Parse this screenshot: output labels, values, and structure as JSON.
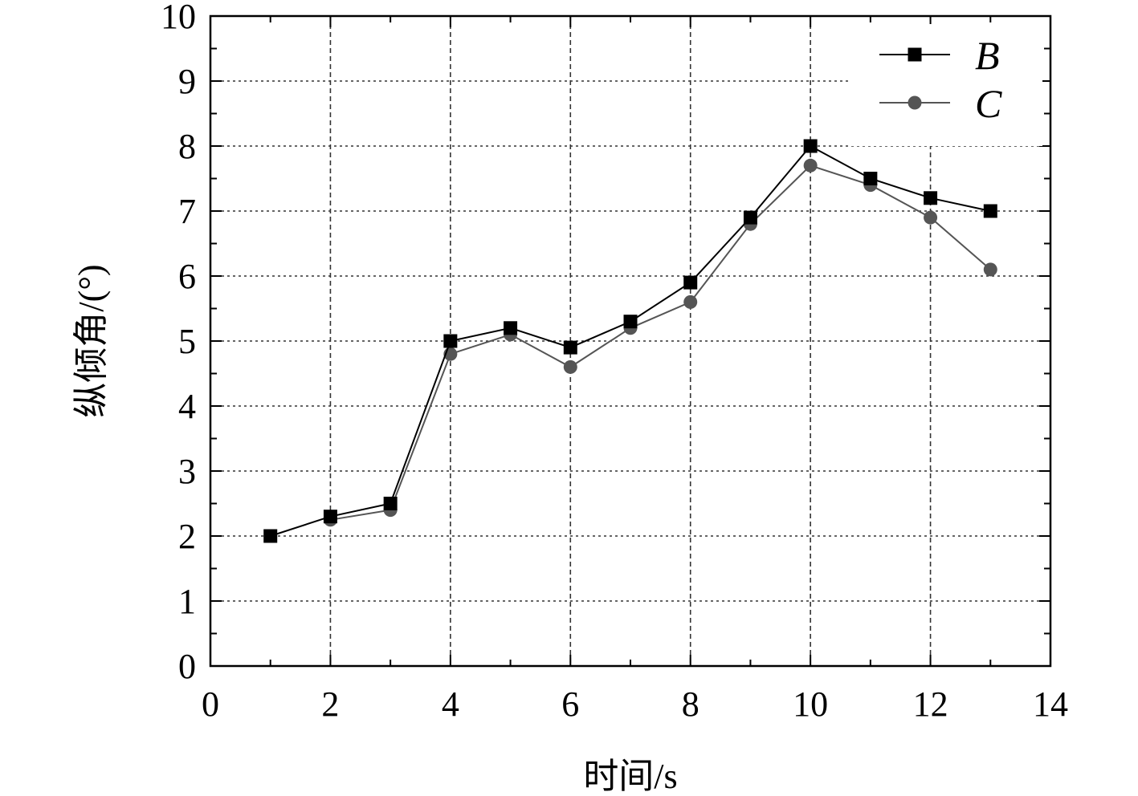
{
  "chart_data": {
    "type": "line",
    "title": "",
    "xlabel": "时间/s",
    "ylabel": "纵倾角/(°)",
    "xlim": [
      0,
      14
    ],
    "ylim": [
      0,
      10
    ],
    "xticks": [
      "0",
      "2",
      "4",
      "6",
      "8",
      "10",
      "12",
      "14"
    ],
    "yticks": [
      "0",
      "1",
      "2",
      "3",
      "4",
      "5",
      "6",
      "7",
      "8",
      "9",
      "10"
    ],
    "grid": true,
    "legend_position": "top-right",
    "series": [
      {
        "name": "B",
        "marker": "square",
        "color": "#000000",
        "x": [
          1,
          2,
          3,
          4,
          5,
          6,
          7,
          8,
          9,
          10,
          11,
          12,
          13
        ],
        "y": [
          2.0,
          2.3,
          2.5,
          5.0,
          5.2,
          4.9,
          5.3,
          5.9,
          6.9,
          8.0,
          7.5,
          7.2,
          7.0
        ]
      },
      {
        "name": "C",
        "marker": "circle",
        "color": "#555555",
        "x": [
          2,
          3,
          4,
          5,
          6,
          7,
          8,
          9,
          10,
          11,
          12,
          13
        ],
        "y": [
          2.25,
          2.4,
          4.8,
          5.1,
          4.6,
          5.2,
          5.6,
          6.8,
          7.7,
          7.4,
          6.9,
          6.1
        ]
      }
    ]
  }
}
